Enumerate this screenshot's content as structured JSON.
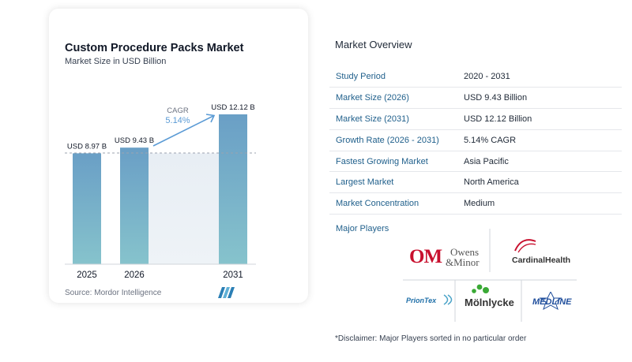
{
  "chart": {
    "title": "Custom Procedure Packs Market",
    "subtitle": "Market Size in USD Billion",
    "source": "Source:  Mordor Intelligence",
    "cagr_label": "CAGR",
    "cagr_value": "5.14%",
    "bar_color": "#6aa3c8",
    "accent_color": "#5b9bd5"
  },
  "chart_data": {
    "type": "bar",
    "categories": [
      "2025",
      "2026",
      "2031"
    ],
    "values": [
      8.97,
      9.43,
      12.12
    ],
    "data_labels": [
      "USD 8.97 B",
      "USD 9.43 B",
      "USD 12.12 B"
    ],
    "title": "Custom Procedure Packs Market",
    "subtitle": "Market Size in USD Billion",
    "ylim": [
      0,
      12.12
    ],
    "grid": false
  },
  "overview": {
    "title": "Market Overview",
    "rows": [
      {
        "label": "Study Period",
        "value": "2020 - 2031"
      },
      {
        "label": "Market Size (2026)",
        "value": "USD 9.43 Billion"
      },
      {
        "label": "Market Size (2031)",
        "value": "USD 12.12 Billion"
      },
      {
        "label": "Growth Rate (2026 - 2031)",
        "value": "5.14% CAGR"
      },
      {
        "label": "Fastest Growing Market",
        "value": "Asia Pacific"
      },
      {
        "label": "Largest Market",
        "value": "North America"
      },
      {
        "label": "Market Concentration",
        "value": "Medium"
      }
    ]
  },
  "players": {
    "label": "Major Players",
    "logos": {
      "owens_om": "OM",
      "owens_line1": "Owens",
      "owens_line2": "&Minor",
      "cardinal": "CardinalHealth",
      "priontex": "PrionTex",
      "molnlycke": "Mölnlycke",
      "medline": "MEDLINE"
    }
  },
  "disclaimer": "*Disclaimer: Major Players sorted in no particular order"
}
